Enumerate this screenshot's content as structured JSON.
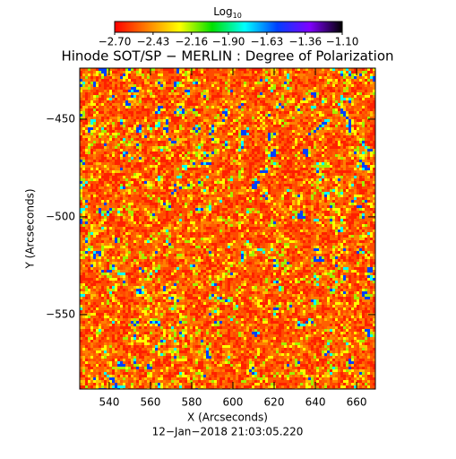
{
  "chart_data": {
    "type": "image",
    "title": "Hinode SOT/SP − MERLIN : Degree of Polarization",
    "xlabel": "X (Arcseconds)",
    "ylabel": "Y (Arcseconds)",
    "footer": "12−Jan−2018 21:03:05.220",
    "xlim": [
      525.7,
      669.1
    ],
    "ylim": [
      -588.1,
      -423.9
    ],
    "xticks": [
      540,
      560,
      580,
      600,
      620,
      640,
      660
    ],
    "yticks": [
      {
        "value": -450,
        "label": "−450"
      },
      {
        "value": -500,
        "label": "−500"
      },
      {
        "value": -550,
        "label": "−550"
      }
    ],
    "colorbar": {
      "label": "Log",
      "label_sub": "10",
      "lim": [
        -2.7,
        -1.1
      ],
      "ticks": [
        {
          "value": -2.7,
          "label": "−2.70"
        },
        {
          "value": -2.43,
          "label": "−2.43"
        },
        {
          "value": -2.16,
          "label": "−2.16"
        },
        {
          "value": -1.9,
          "label": "−1.90"
        },
        {
          "value": -1.63,
          "label": "−1.63"
        },
        {
          "value": -1.36,
          "label": "−1.36"
        },
        {
          "value": -1.1,
          "label": "−1.10"
        }
      ],
      "colormap": [
        "#ff0000",
        "#ff8000",
        "#ffff00",
        "#00e000",
        "#00ffff",
        "#0040ff",
        "#8000ff",
        "#000000"
      ]
    }
  }
}
